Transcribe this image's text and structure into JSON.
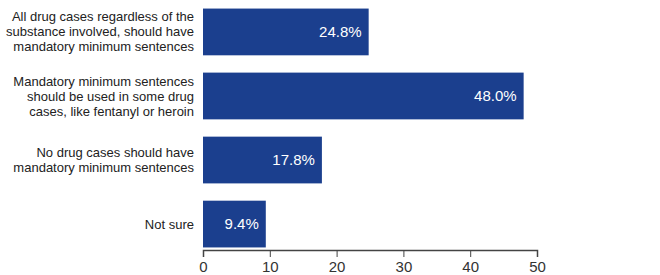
{
  "chart_data": {
    "type": "bar",
    "orientation": "horizontal",
    "categories": [
      "All drug cases regardless of the substance involved, should have mandatory minimum sentences",
      "Mandatory minimum sentences should be used in some drug cases, like fentanyl or heroin",
      "No drug cases should have mandatory minimum sentences",
      "Not sure"
    ],
    "values": [
      24.8,
      48.0,
      17.8,
      9.4
    ],
    "value_labels": [
      "24.8%",
      "48.0%",
      "17.8%",
      "9.4%"
    ],
    "color": "#1b3f8e",
    "xlim": [
      0,
      50
    ],
    "xticks": [
      0,
      10,
      20,
      30,
      40,
      50
    ],
    "data_labels": true,
    "grid": false
  }
}
